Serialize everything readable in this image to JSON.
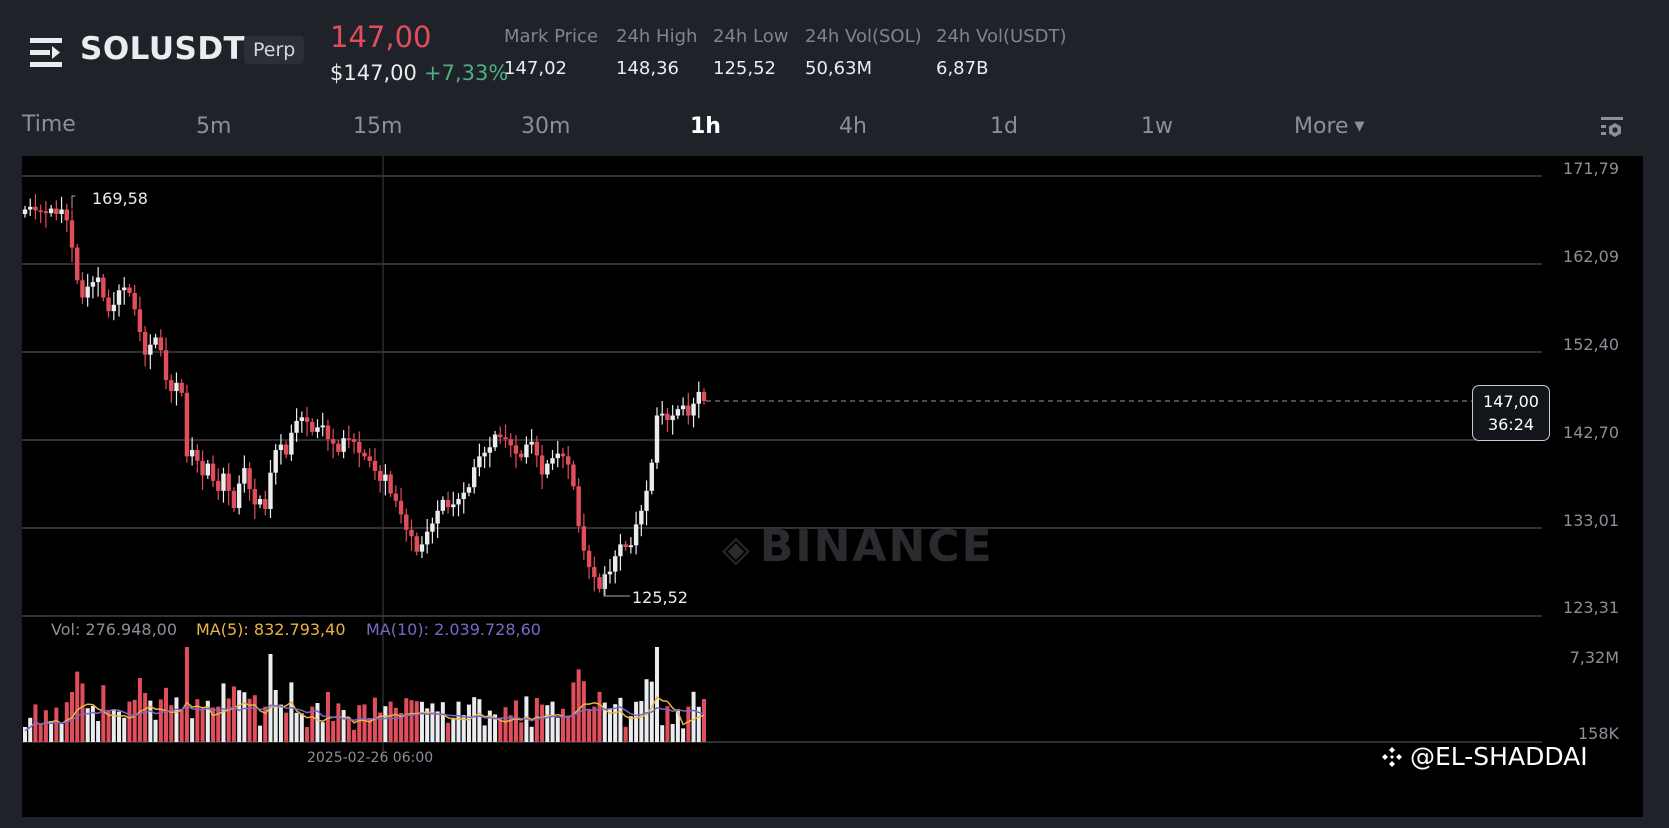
{
  "header": {
    "symbol": "SOLUSDT",
    "contract_type": "Perp",
    "last_price": "147,00",
    "usd_price": "$147,00",
    "change_pct": "+7,33%",
    "stats": [
      {
        "label": "Mark Price",
        "value": "147,02"
      },
      {
        "label": "24h High",
        "value": "148,36"
      },
      {
        "label": "24h Low",
        "value": "125,52"
      },
      {
        "label": "24h Vol(SOL)",
        "value": "50,63M"
      },
      {
        "label": "24h Vol(USDT)",
        "value": "6,87B"
      }
    ]
  },
  "tabs": {
    "time": "Time",
    "intervals": [
      "5m",
      "15m",
      "30m",
      "1h",
      "4h",
      "1d",
      "1w"
    ],
    "active": "1h",
    "more": "More"
  },
  "chart": {
    "watermark": "BINANCE",
    "price_axis": [
      "171,79",
      "162,09",
      "152,40",
      "142,70",
      "133,01",
      "123,31"
    ],
    "volume_axis": [
      "7,32M",
      "158K"
    ],
    "current_price": "147,00",
    "countdown": "36:24",
    "high_marker": "169,58",
    "low_marker": "125,52",
    "crosshair_date": "2025-02-26 06:00",
    "volume_legend": {
      "vol": "Vol: 276.948,00",
      "ma5": "MA(5): 832.793,40",
      "ma10": "MA(10): 2.039.728,60"
    },
    "colors": {
      "up": "#eaecef",
      "down": "#e04e5c",
      "ma5": "#e8b443",
      "ma10": "#7b68c4",
      "background": "#000000",
      "panel": "#1f2229"
    }
  },
  "footer": {
    "watermark_user": "@EL-SHADDAI"
  },
  "chart_data": {
    "type": "candlestick",
    "title": "SOLUSDT Perp 1h",
    "ylim": [
      123.31,
      171.79
    ],
    "yticks": [
      171.79,
      162.09,
      152.4,
      142.7,
      133.01,
      123.31
    ],
    "annotations": {
      "high": 169.58,
      "low": 125.52,
      "last": 147.0
    },
    "closes": [
      168.1,
      168.4,
      168.0,
      167.9,
      167.7,
      168.2,
      167.6,
      168.1,
      166.9,
      163.9,
      160.3,
      158.4,
      159.6,
      160.1,
      160.6,
      158.4,
      156.9,
      157.6,
      159.2,
      159.5,
      158.9,
      157.1,
      154.6,
      152.1,
      153.2,
      154.0,
      152.6,
      149.3,
      148.1,
      149.0,
      147.9,
      140.9,
      141.6,
      140.4,
      138.8,
      140.1,
      138.2,
      137.1,
      139.0,
      137.1,
      135.2,
      137.9,
      139.6,
      137.3,
      135.6,
      136.2,
      135.1,
      139.1,
      141.6,
      142.2,
      141.1,
      143.5,
      144.8,
      145.2,
      144.7,
      143.6,
      144.1,
      144.3,
      142.8,
      142.3,
      141.4,
      142.9,
      142.8,
      142.5,
      141.3,
      140.9,
      140.4,
      139.3,
      138.2,
      138.9,
      136.8,
      136.0,
      134.5,
      132.8,
      132.1,
      130.4,
      131.2,
      132.6,
      133.5,
      134.9,
      136.1,
      135.3,
      135.6,
      136.2,
      136.9,
      137.5,
      139.7,
      140.9,
      141.3,
      141.9,
      143.3,
      143.0,
      142.8,
      142.1,
      141.2,
      140.8,
      142.2,
      142.5,
      141.0,
      138.9,
      140.1,
      140.7,
      141.2,
      140.9,
      140.0,
      137.6,
      133.2,
      130.5,
      128.7,
      127.6,
      126.3,
      127.9,
      128.2,
      129.9,
      131.2,
      130.9,
      131.1,
      133.4,
      134.9,
      137.1,
      140.2,
      145.4,
      145.6,
      144.9,
      145.4,
      146.1,
      146.5,
      145.4,
      146.7,
      148.0,
      147.0
    ],
    "volume_note": "Volume bars with MA(5) and MA(10) overlays; volume axis 158K to 7,32M"
  }
}
